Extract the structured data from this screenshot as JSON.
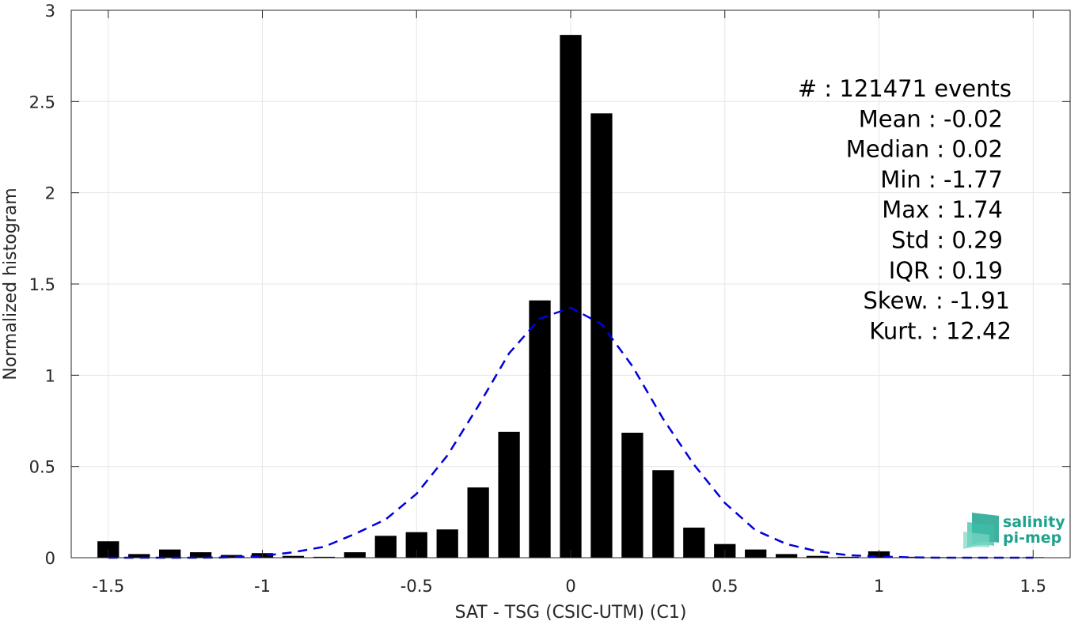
{
  "chart_data": {
    "type": "bar",
    "title": "",
    "xlabel": "SAT - TSG (CSIC-UTM) (C1)",
    "ylabel": "Normalized histogram",
    "xlim": [
      -1.62,
      1.62
    ],
    "ylim": [
      0,
      3
    ],
    "xticks": [
      "-1.5",
      "-1",
      "-0.5",
      "0",
      "0.5",
      "1",
      "1.5"
    ],
    "yticks": [
      "0",
      "0.5",
      "1",
      "1.5",
      "2",
      "2.5",
      "3"
    ],
    "grid": true,
    "bar_width": 0.07,
    "series": [
      {
        "type": "bar",
        "color": "#000000",
        "x": [
          -1.5,
          -1.4,
          -1.3,
          -1.2,
          -1.1,
          -1.0,
          -0.9,
          -0.8,
          -0.7,
          -0.6,
          -0.5,
          -0.4,
          -0.3,
          -0.2,
          -0.1,
          0.0,
          0.1,
          0.2,
          0.3,
          0.4,
          0.5,
          0.6,
          0.7,
          0.8,
          0.9,
          1.0,
          1.1,
          1.2,
          1.3,
          1.4,
          1.5
        ],
        "values": [
          0.09,
          0.02,
          0.045,
          0.03,
          0.015,
          0.025,
          0.01,
          0.005,
          0.03,
          0.12,
          0.14,
          0.155,
          0.385,
          0.69,
          1.41,
          2.865,
          2.435,
          0.685,
          0.48,
          0.165,
          0.075,
          0.045,
          0.02,
          0.01,
          0.005,
          0.035,
          0.005,
          0.003,
          0.003,
          0.002,
          0.003
        ]
      },
      {
        "type": "line",
        "style": "dashed",
        "color": "#0000dd",
        "x": [
          -1.5,
          -1.4,
          -1.3,
          -1.2,
          -1.1,
          -1.0,
          -0.9,
          -0.8,
          -0.7,
          -0.6,
          -0.5,
          -0.4,
          -0.3,
          -0.2,
          -0.1,
          0.0,
          0.1,
          0.2,
          0.3,
          0.4,
          0.5,
          0.6,
          0.7,
          0.8,
          0.9,
          1.0,
          1.1,
          1.2,
          1.3,
          1.4,
          1.5
        ],
        "values": [
          0.0,
          0.0,
          0.0,
          0.0,
          0.002,
          0.01,
          0.03,
          0.06,
          0.13,
          0.21,
          0.35,
          0.56,
          0.83,
          1.12,
          1.31,
          1.37,
          1.28,
          1.05,
          0.76,
          0.51,
          0.3,
          0.15,
          0.075,
          0.035,
          0.014,
          0.006,
          0.002,
          0.0,
          0.0,
          0.0,
          0.0
        ]
      }
    ],
    "annotations": [
      "#  : 121471 events",
      "Mean : -0.02",
      "Median : 0.02",
      "Min : -1.77",
      "Max : 1.74",
      "Std : 0.29",
      "IQR : 0.19",
      "Skew. : -1.91",
      "Kurt. : 12.42"
    ]
  },
  "logo": {
    "line1": "salinity",
    "line2": "pi-mep",
    "color": "#1fa38e"
  }
}
